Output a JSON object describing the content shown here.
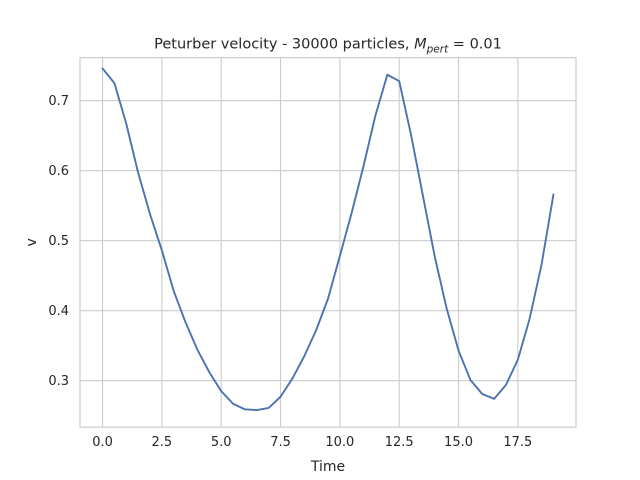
{
  "chart_data": {
    "type": "line",
    "title": {
      "prefix": "Peturber velocity - 30000 particles, ",
      "math_symbol": "M",
      "math_subscript": "pert",
      "suffix": " = 0.01"
    },
    "xlabel": "Time",
    "ylabel": "v",
    "xlim": [
      -0.95,
      19.95
    ],
    "ylim": [
      0.2335,
      0.7615
    ],
    "xticks": [
      0.0,
      2.5,
      5.0,
      7.5,
      10.0,
      12.5,
      15.0,
      17.5
    ],
    "xtick_labels": [
      "0.0",
      "2.5",
      "5.0",
      "7.5",
      "10.0",
      "12.5",
      "15.0",
      "17.5"
    ],
    "yticks": [
      0.3,
      0.4,
      0.5,
      0.6,
      0.7
    ],
    "ytick_labels": [
      "0.3",
      "0.4",
      "0.5",
      "0.6",
      "0.7"
    ],
    "grid": true,
    "legend": "none",
    "series": [
      {
        "color": "#4c72b0",
        "x": [
          0.0,
          0.5,
          1.0,
          1.5,
          2.0,
          2.5,
          3.0,
          3.5,
          4.0,
          4.5,
          5.0,
          5.5,
          6.0,
          6.5,
          7.0,
          7.5,
          8.0,
          8.5,
          9.0,
          9.5,
          10.0,
          10.5,
          11.0,
          11.5,
          12.0,
          12.5,
          13.0,
          13.5,
          14.0,
          14.5,
          15.0,
          15.5,
          16.0,
          16.5,
          17.0,
          17.5,
          18.0,
          18.5,
          19.0
        ],
        "y": [
          0.746,
          0.725,
          0.667,
          0.597,
          0.538,
          0.486,
          0.428,
          0.383,
          0.344,
          0.312,
          0.285,
          0.267,
          0.259,
          0.258,
          0.261,
          0.277,
          0.303,
          0.335,
          0.372,
          0.417,
          0.478,
          0.54,
          0.607,
          0.679,
          0.737,
          0.728,
          0.651,
          0.564,
          0.477,
          0.403,
          0.343,
          0.301,
          0.281,
          0.274,
          0.294,
          0.33,
          0.389,
          0.466,
          0.566
        ]
      }
    ]
  }
}
